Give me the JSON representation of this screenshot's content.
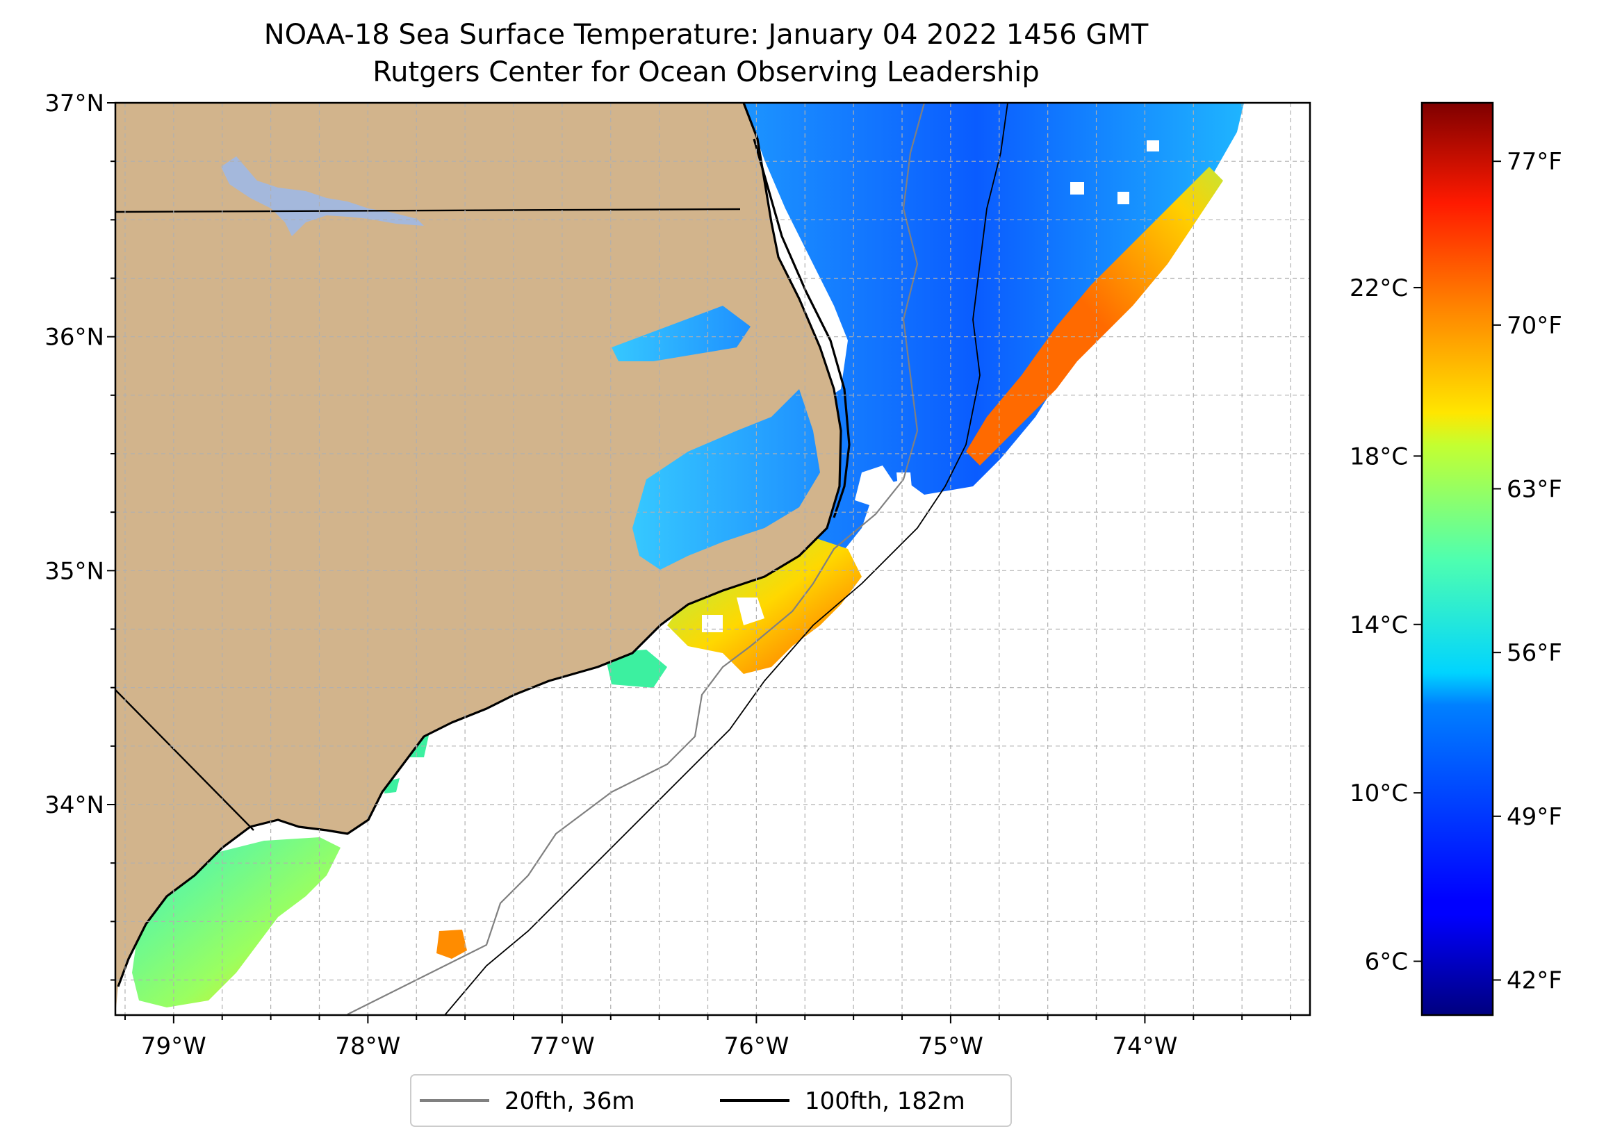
{
  "title": {
    "line1": "NOAA-18 Sea Surface Temperature: January 04 2022 1456 GMT",
    "line2": "Rutgers Center for Ocean Observing Leadership"
  },
  "map": {
    "lon_range": [
      -79.3,
      -73.15
    ],
    "lat_range": [
      33.1,
      37.0
    ],
    "lon_ticks": [
      {
        "value": -79,
        "label": "79°W"
      },
      {
        "value": -78,
        "label": "78°W"
      },
      {
        "value": -77,
        "label": "77°W"
      },
      {
        "value": -76,
        "label": "76°W"
      },
      {
        "value": -75,
        "label": "75°W"
      },
      {
        "value": -74,
        "label": "74°W"
      }
    ],
    "lat_ticks": [
      {
        "value": 34,
        "label": "34°N"
      },
      {
        "value": 35,
        "label": "35°N"
      },
      {
        "value": 36,
        "label": "36°N"
      },
      {
        "value": 37,
        "label": "37°N"
      }
    ],
    "grid": true,
    "land_color": "#d2b48c",
    "lake_color": "#a4b8dc"
  },
  "colorbar": {
    "celsius": [
      {
        "value": 6,
        "label": "6°C"
      },
      {
        "value": 10,
        "label": "10°C"
      },
      {
        "value": 14,
        "label": "14°C"
      },
      {
        "value": 18,
        "label": "18°C"
      },
      {
        "value": 22,
        "label": "22°C"
      }
    ],
    "fahrenheit": [
      {
        "value": 42,
        "label": "42°F"
      },
      {
        "value": 49,
        "label": "49°F"
      },
      {
        "value": 56,
        "label": "56°F"
      },
      {
        "value": 63,
        "label": "63°F"
      },
      {
        "value": 70,
        "label": "70°F"
      },
      {
        "value": 77,
        "label": "77°F"
      }
    ],
    "f_range": [
      40.5,
      79.5
    ],
    "colormap": "jet"
  },
  "legend": {
    "placement": "bottom-center",
    "items": [
      {
        "label": "20fth, 36m",
        "color": "#808080"
      },
      {
        "label": "100fth, 182m",
        "color": "#000000"
      }
    ]
  }
}
